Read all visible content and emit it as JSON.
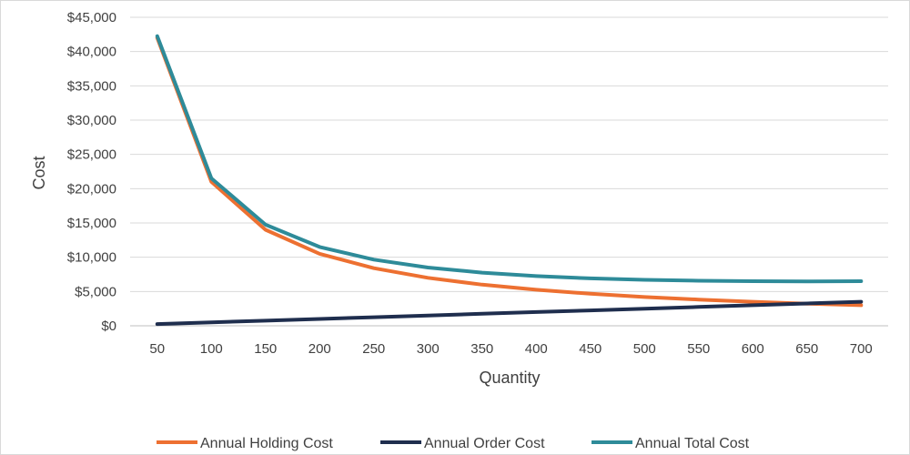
{
  "chart_data": {
    "type": "line",
    "title": "",
    "xlabel": "Quantity",
    "ylabel": "Cost",
    "x": [
      50,
      100,
      150,
      200,
      250,
      300,
      350,
      400,
      450,
      500,
      550,
      600,
      650,
      700
    ],
    "ylim": [
      0,
      45000
    ],
    "ytick_labels": [
      "$0",
      "$5,000",
      "$10,000",
      "$15,000",
      "$20,000",
      "$25,000",
      "$30,000",
      "$35,000",
      "$40,000",
      "$45,000"
    ],
    "grid": true,
    "legend_position": "bottom",
    "series": [
      {
        "name": "Annual Holding Cost",
        "color": "#ED7031",
        "values": [
          42000,
          21000,
          14000,
          10500,
          8400,
          7000,
          6000,
          5250,
          4667,
          4200,
          3818,
          3500,
          3231,
          3000
        ]
      },
      {
        "name": "Annual Order Cost",
        "color": "#1F2E4E",
        "values": [
          250,
          500,
          750,
          1000,
          1250,
          1500,
          1750,
          2000,
          2250,
          2500,
          2750,
          3000,
          3250,
          3500
        ]
      },
      {
        "name": "Annual Total Cost",
        "color": "#2E8B99",
        "values": [
          42250,
          21500,
          14750,
          11500,
          9650,
          8500,
          7750,
          7250,
          6917,
          6700,
          6568,
          6500,
          6481,
          6500
        ]
      }
    ]
  }
}
